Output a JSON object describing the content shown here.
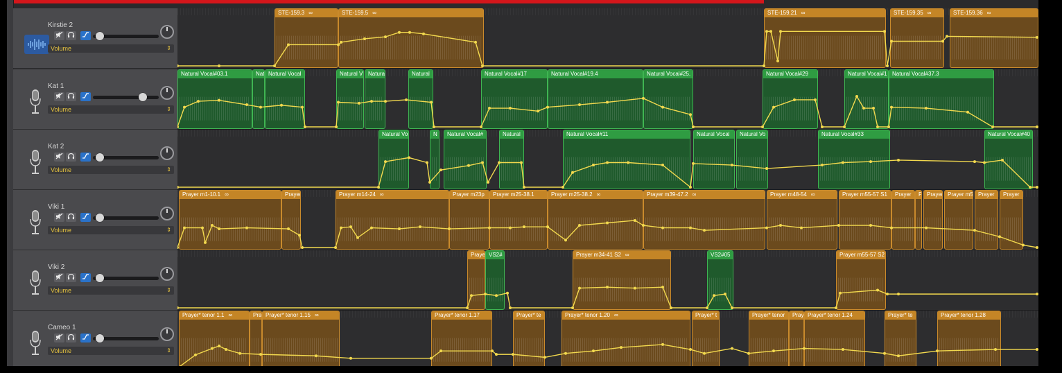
{
  "colors": {
    "orange_region": "#c48526",
    "green_region": "#2f9c42",
    "automation": "#f2d94e",
    "auto_button": "#2a72c9",
    "playhead_red": "#d4161b"
  },
  "tracks": [
    {
      "name": "Kirstie 2",
      "icon": "waveform-icon",
      "param": "Volume",
      "volume_fraction": 0.05,
      "regions": [
        {
          "label": "STE-159.3",
          "loop": true,
          "color": "orange"
        },
        {
          "label": "STE-159.5",
          "loop": true,
          "color": "orange"
        },
        {
          "label": "STE-159.21",
          "loop": true,
          "color": "orange"
        },
        {
          "label": "STE-159.35",
          "loop": true,
          "color": "orange"
        },
        {
          "label": "STE-159.36",
          "loop": true,
          "color": "orange"
        }
      ]
    },
    {
      "name": "Kat 1",
      "icon": "microphone-icon",
      "param": "Volume",
      "volume_fraction": 0.8,
      "regions": [
        {
          "label": "Natural Vocal#03.1",
          "color": "green"
        },
        {
          "label": "Nat",
          "color": "green"
        },
        {
          "label": "Natural Vocal",
          "color": "green"
        },
        {
          "label": "Natural V",
          "color": "green"
        },
        {
          "label": "Natura",
          "color": "green"
        },
        {
          "label": "Natural",
          "color": "green"
        },
        {
          "label": "Natural Vocal#17",
          "color": "green"
        },
        {
          "label": "Natural Vocal#19.4",
          "color": "green"
        },
        {
          "label": "Natural Vocal#25.",
          "color": "green"
        },
        {
          "label": "Natural Vocal#29",
          "color": "green"
        },
        {
          "label": "Natural Vocal#1",
          "color": "green"
        },
        {
          "label": "Natural Vocal#37.3",
          "color": "green"
        }
      ]
    },
    {
      "name": "Kat 2",
      "icon": "microphone-icon",
      "param": "Volume",
      "volume_fraction": 0.05,
      "regions": [
        {
          "label": "Natural Vo",
          "color": "green"
        },
        {
          "label": "N",
          "color": "green"
        },
        {
          "label": "Natural Vocal#",
          "color": "green"
        },
        {
          "label": "Natural",
          "color": "green"
        },
        {
          "label": "Natural Vocal#11",
          "color": "green"
        },
        {
          "label": "Natural Vocal",
          "color": "green"
        },
        {
          "label": "Natural Vo",
          "color": "green"
        },
        {
          "label": "Natural Vocal#33",
          "color": "green"
        },
        {
          "label": "Natural Vocal#40",
          "color": "green"
        }
      ]
    },
    {
      "name": "Viki 1",
      "icon": "microphone-icon",
      "param": "Volume",
      "volume_fraction": 0.05,
      "regions": [
        {
          "label": "Prayer m1-10.1",
          "loop": true,
          "color": "orange"
        },
        {
          "label": "Prayer",
          "color": "orange"
        },
        {
          "label": "Prayer m14-24",
          "loop": true,
          "color": "orange"
        },
        {
          "label": "Prayer m23p",
          "color": "orange"
        },
        {
          "label": "Prayer m25-38.1",
          "color": "orange"
        },
        {
          "label": "Prayer m25-38.2",
          "loop": true,
          "color": "orange"
        },
        {
          "label": "Prayer m39-47.2",
          "loop": true,
          "color": "orange"
        },
        {
          "label": "Prayer m48-54",
          "loop": true,
          "color": "orange"
        },
        {
          "label": "Prayer m55-57 S1",
          "color": "orange"
        },
        {
          "label": "Prayer",
          "color": "orange"
        },
        {
          "label": "P",
          "color": "orange"
        },
        {
          "label": "Prayer",
          "color": "orange"
        },
        {
          "label": "Prayer m5",
          "color": "orange"
        },
        {
          "label": "Prayer",
          "color": "orange"
        },
        {
          "label": "Prayer",
          "color": "orange"
        }
      ]
    },
    {
      "name": "Viki 2",
      "icon": "microphone-icon",
      "param": "Volume",
      "volume_fraction": 0.05,
      "regions": [
        {
          "label": "Praye",
          "color": "orange"
        },
        {
          "label": "VS2#",
          "color": "green"
        },
        {
          "label": "Prayer m34-41 S2",
          "loop": true,
          "color": "orange"
        },
        {
          "label": "VS2#05",
          "color": "green"
        },
        {
          "label": "Prayer m55-57 S2",
          "color": "orange"
        }
      ]
    },
    {
      "name": "Cameo 1",
      "icon": "microphone-icon",
      "param": "Volume",
      "volume_fraction": 0.05,
      "regions": [
        {
          "label": "Prayer* tenor 1.1",
          "loop": true,
          "color": "orange"
        },
        {
          "label": "Pra",
          "color": "orange"
        },
        {
          "label": "Prayer* tenor 1.15",
          "loop": true,
          "color": "orange"
        },
        {
          "label": "Prayer* tenor 1.17",
          "color": "orange"
        },
        {
          "label": "Prayer* te",
          "color": "orange"
        },
        {
          "label": "Prayer* tenor 1.20",
          "loop": true,
          "color": "orange"
        },
        {
          "label": "Prayer* t",
          "color": "orange"
        },
        {
          "label": "Prayer* tenor",
          "color": "orange"
        },
        {
          "label": "Pray",
          "color": "orange"
        },
        {
          "label": "Prayer* tenor 1.24",
          "color": "orange"
        },
        {
          "label": "Prayer* te",
          "color": "orange"
        },
        {
          "label": "Prayer* tenor 1.28",
          "color": "orange"
        }
      ]
    }
  ]
}
